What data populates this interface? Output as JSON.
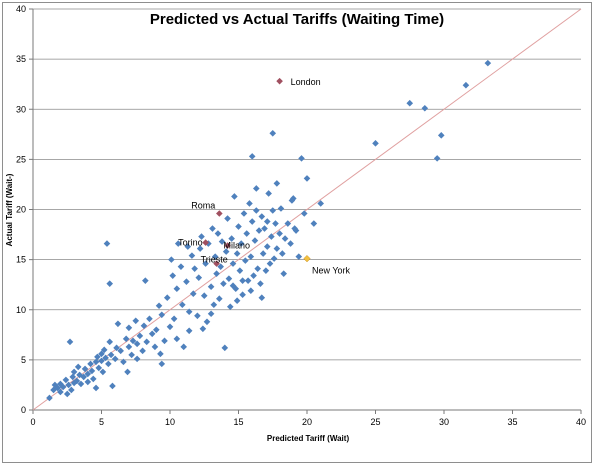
{
  "chart_data": {
    "type": "scatter",
    "title": "Predicted vs Actual Tariffs (Waiting Time)",
    "xlabel": "Predicted Tariff  (Wait)",
    "ylabel": "Actual Tariff  (Wait-)",
    "xlim": [
      0,
      40
    ],
    "ylim": [
      0,
      40
    ],
    "xticks": [
      0,
      5,
      10,
      15,
      20,
      25,
      30,
      35,
      40
    ],
    "yticks": [
      0,
      5,
      10,
      15,
      20,
      25,
      30,
      35,
      40
    ],
    "grid": "horizontal",
    "reference_line": {
      "from": [
        0,
        0
      ],
      "to": [
        40,
        40
      ],
      "color": "#e0a0a0"
    },
    "colors": {
      "points": "#4f81bd",
      "highlight": "#a05060",
      "newyork": "#f2c040"
    },
    "series": [
      {
        "points": [
          [
            1.2,
            1.2
          ],
          [
            1.5,
            2
          ],
          [
            1.6,
            2.5
          ],
          [
            1.8,
            2.2
          ],
          [
            2,
            1.8
          ],
          [
            2,
            2.6
          ],
          [
            2.2,
            2.3
          ],
          [
            2.4,
            3
          ],
          [
            2.5,
            1.6
          ],
          [
            2.6,
            2.5
          ],
          [
            2.8,
            2
          ],
          [
            2.9,
            3.3
          ],
          [
            3,
            2.7
          ],
          [
            3,
            3.8
          ],
          [
            3.2,
            2.9
          ],
          [
            3.3,
            4.3
          ],
          [
            3.4,
            3.5
          ],
          [
            3.5,
            2.6
          ],
          [
            3.7,
            3.3
          ],
          [
            3.8,
            4.1
          ],
          [
            4,
            3.6
          ],
          [
            4,
            2.8
          ],
          [
            4.2,
            4.6
          ],
          [
            4.3,
            3.9
          ],
          [
            4.4,
            3.1
          ],
          [
            4.6,
            4.8
          ],
          [
            4.7,
            5.3
          ],
          [
            4.8,
            4.2
          ],
          [
            5,
            5.6
          ],
          [
            5,
            4.9
          ],
          [
            5.1,
            3.8
          ],
          [
            5.2,
            6
          ],
          [
            5.3,
            5.2
          ],
          [
            5.5,
            4.6
          ],
          [
            5.6,
            6.8
          ],
          [
            5.7,
            5.5
          ],
          [
            5.8,
            2.4
          ],
          [
            6,
            5.1
          ],
          [
            6.1,
            6.2
          ],
          [
            6.2,
            8.6
          ],
          [
            6.4,
            5.9
          ],
          [
            6.6,
            4.8
          ],
          [
            6.8,
            7.1
          ],
          [
            7,
            6.3
          ],
          [
            7,
            8.2
          ],
          [
            7.2,
            5.5
          ],
          [
            7.3,
            6.9
          ],
          [
            7.5,
            8.9
          ],
          [
            7.6,
            6.6
          ],
          [
            7.8,
            7.4
          ],
          [
            8,
            5.9
          ],
          [
            8.1,
            8.4
          ],
          [
            8.2,
            12.9
          ],
          [
            8.3,
            6.8
          ],
          [
            8.5,
            9.1
          ],
          [
            8.7,
            7.6
          ],
          [
            8.9,
            6.3
          ],
          [
            9,
            8
          ],
          [
            9.2,
            10.4
          ],
          [
            9.4,
            9.5
          ],
          [
            9.6,
            6.9
          ],
          [
            9.8,
            11.2
          ],
          [
            10,
            8.3
          ],
          [
            10.1,
            15
          ],
          [
            10.2,
            13.4
          ],
          [
            10.3,
            9.1
          ],
          [
            10.5,
            12.1
          ],
          [
            10.5,
            7.1
          ],
          [
            10.6,
            16.6
          ],
          [
            10.8,
            14.3
          ],
          [
            10.9,
            10.5
          ],
          [
            11,
            6.3
          ],
          [
            11.2,
            12.8
          ],
          [
            11.3,
            16.3
          ],
          [
            11.4,
            9.8
          ],
          [
            11.6,
            15.4
          ],
          [
            11.7,
            11.6
          ],
          [
            11.8,
            14.1
          ],
          [
            12,
            9.4
          ],
          [
            12.1,
            13.2
          ],
          [
            12.2,
            16.1
          ],
          [
            12.3,
            17.3
          ],
          [
            12.5,
            11.4
          ],
          [
            12.6,
            14.6
          ],
          [
            12.7,
            8.8
          ],
          [
            12.8,
            16.6
          ],
          [
            13,
            12.3
          ],
          [
            13.1,
            18.1
          ],
          [
            13.2,
            10.5
          ],
          [
            13.3,
            15.3
          ],
          [
            13.4,
            13.6
          ],
          [
            13.5,
            17.6
          ],
          [
            13.6,
            11.1
          ],
          [
            13.7,
            14.3
          ],
          [
            13.8,
            16.8
          ],
          [
            13.9,
            12.6
          ],
          [
            14,
            6.2
          ],
          [
            14.1,
            15.8
          ],
          [
            14.2,
            19.1
          ],
          [
            14.3,
            13.1
          ],
          [
            14.4,
            10.3
          ],
          [
            14.5,
            17.1
          ],
          [
            14.6,
            14.6
          ],
          [
            14.7,
            21.3
          ],
          [
            14.8,
            12.1
          ],
          [
            14.9,
            15.6
          ],
          [
            15,
            18.3
          ],
          [
            15.1,
            13.9
          ],
          [
            15.2,
            16.6
          ],
          [
            15.3,
            11.5
          ],
          [
            15.4,
            19.6
          ],
          [
            15.5,
            14.9
          ],
          [
            15.6,
            17.6
          ],
          [
            15.7,
            12.9
          ],
          [
            15.8,
            20.6
          ],
          [
            15.9,
            15.3
          ],
          [
            16,
            18.8
          ],
          [
            16.1,
            13.4
          ],
          [
            16.2,
            16.9
          ],
          [
            16.3,
            22.1
          ],
          [
            16.4,
            14.1
          ],
          [
            16.5,
            17.9
          ],
          [
            16.6,
            12.6
          ],
          [
            16.7,
            19.3
          ],
          [
            16.8,
            15.6
          ],
          [
            16.9,
            18.1
          ],
          [
            17,
            13.9
          ],
          [
            17.1,
            16.3
          ],
          [
            17.2,
            21.6
          ],
          [
            17.3,
            14.6
          ],
          [
            17.4,
            17.3
          ],
          [
            17.5,
            19.9
          ],
          [
            17.6,
            15.1
          ],
          [
            17.7,
            18.6
          ],
          [
            17.8,
            16.1
          ],
          [
            18,
            17.6
          ],
          [
            18.1,
            20.1
          ],
          [
            18.2,
            15.6
          ],
          [
            18.4,
            17.1
          ],
          [
            18.6,
            18.6
          ],
          [
            18.8,
            16.6
          ],
          [
            19,
            21.1
          ],
          [
            19.2,
            17.9
          ],
          [
            19.4,
            15.3
          ],
          [
            19.6,
            25.1
          ],
          [
            19.8,
            19.6
          ],
          [
            20,
            23.1
          ],
          [
            20.5,
            18.6
          ],
          [
            21,
            20.6
          ],
          [
            16,
            25.3
          ],
          [
            17.5,
            27.6
          ],
          [
            25,
            26.6
          ],
          [
            27.5,
            30.6
          ],
          [
            28.6,
            30.1
          ],
          [
            29.5,
            25.1
          ],
          [
            29.8,
            27.4
          ],
          [
            31.6,
            32.4
          ],
          [
            33.2,
            34.6
          ],
          [
            5.4,
            16.6
          ],
          [
            5.6,
            12.6
          ],
          [
            14.6,
            12.4
          ],
          [
            15.3,
            12.9
          ],
          [
            13,
            9.6
          ],
          [
            11.4,
            7.9
          ],
          [
            9.3,
            5.6
          ],
          [
            6.9,
            3.8
          ],
          [
            4.6,
            2.2
          ],
          [
            2.7,
            6.8
          ],
          [
            7.6,
            5.1
          ],
          [
            9.4,
            4.6
          ],
          [
            15.9,
            11.9
          ],
          [
            16.7,
            11.2
          ],
          [
            14.9,
            10.9
          ],
          [
            12.4,
            8.1
          ],
          [
            18.3,
            13.6
          ],
          [
            17.1,
            18.8
          ],
          [
            16.3,
            19.9
          ],
          [
            19.1,
            18.1
          ],
          [
            18.9,
            20.9
          ],
          [
            17.8,
            22.6
          ]
        ]
      }
    ],
    "annotations": [
      {
        "label": "London",
        "x": 18,
        "y": 32.8,
        "color": "#a05060"
      },
      {
        "label": "Roma",
        "x": 13.6,
        "y": 19.6,
        "color": "#a05060"
      },
      {
        "label": "Torino",
        "x": 12.6,
        "y": 16.7,
        "color": "#a05060"
      },
      {
        "label": "Milano",
        "x": 14.2,
        "y": 16.4,
        "color": "#a05060"
      },
      {
        "label": "Trieste",
        "x": 13.4,
        "y": 14.6,
        "color": "#a05060"
      },
      {
        "label": "New York",
        "x": 20,
        "y": 15.1,
        "color": "#f2c040"
      }
    ]
  }
}
